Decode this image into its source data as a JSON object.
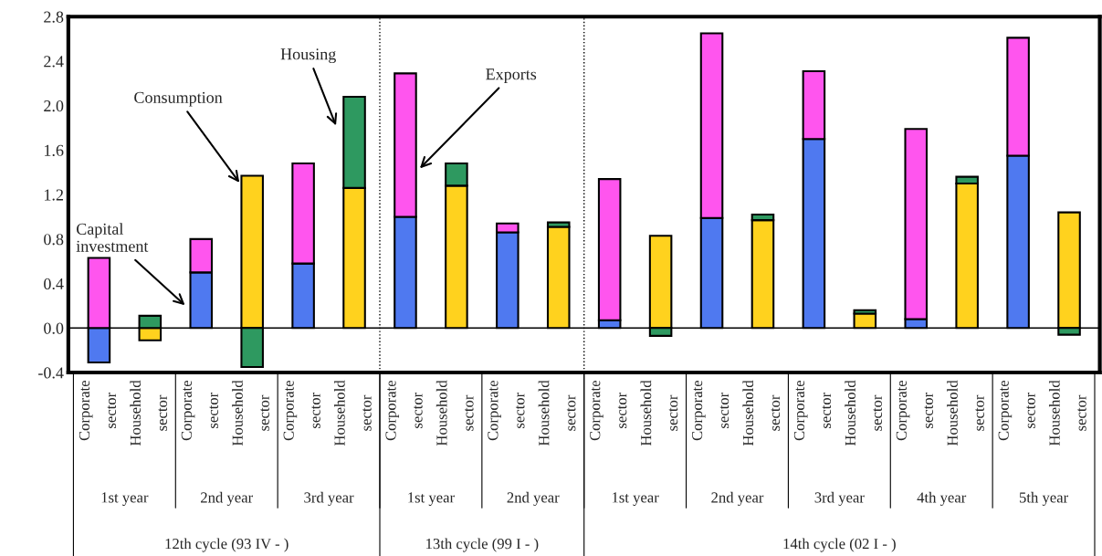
{
  "chart_data": {
    "type": "bar",
    "stacked": true,
    "categories": [
      "Corporate sector",
      "Household sector",
      "Corporate sector",
      "Household sector",
      "Corporate sector",
      "Household sector",
      "Corporate sector",
      "Household sector",
      "Corporate sector",
      "Household sector",
      "Corporate sector",
      "Household sector",
      "Corporate sector",
      "Household sector",
      "Corporate sector",
      "Household sector",
      "Corporate sector",
      "Household sector",
      "Corporate sector",
      "Household sector"
    ],
    "series": [
      {
        "name": "Capital investment",
        "color": "#4f79f0",
        "values": [
          -0.31,
          null,
          0.5,
          null,
          0.58,
          null,
          1.0,
          null,
          0.86,
          null,
          0.07,
          null,
          0.99,
          null,
          1.7,
          null,
          0.08,
          null,
          1.55,
          null
        ]
      },
      {
        "name": "Consumption",
        "color": "#ffd21e",
        "values": [
          null,
          -0.11,
          null,
          1.37,
          null,
          1.26,
          null,
          1.28,
          null,
          0.91,
          null,
          0.83,
          null,
          0.97,
          null,
          0.13,
          null,
          1.3,
          null,
          1.04
        ]
      },
      {
        "name": "Exports",
        "color": "#ff55ee",
        "values": [
          0.63,
          null,
          0.3,
          null,
          0.9,
          null,
          1.29,
          null,
          0.08,
          null,
          1.27,
          null,
          1.66,
          null,
          0.61,
          null,
          1.71,
          null,
          1.06,
          null
        ]
      },
      {
        "name": "Housing",
        "color": "#2e9960",
        "values": [
          null,
          0.11,
          null,
          -0.35,
          null,
          0.82,
          null,
          0.2,
          null,
          0.04,
          null,
          -0.07,
          null,
          0.05,
          null,
          0.03,
          null,
          0.06,
          null,
          -0.06
        ]
      }
    ],
    "ylim": [
      -0.4,
      2.8
    ],
    "yticks": [
      {
        "value": -0.4,
        "label": "-0.4"
      },
      {
        "value": 0,
        "label": "0.0"
      },
      {
        "value": 0.4,
        "label": "0.4"
      },
      {
        "value": 0.8,
        "label": "0.8"
      },
      {
        "value": 1.2,
        "label": "1.2"
      },
      {
        "value": 1.6,
        "label": "1.6"
      },
      {
        "value": 2.0,
        "label": "2.0"
      },
      {
        "value": 2.4,
        "label": "2.4"
      },
      {
        "value": 2.8,
        "label": "2.8"
      }
    ],
    "grid": false,
    "legend": false,
    "annotations": [
      "1st year",
      "2nd year",
      "3rd year",
      "1st year",
      "2nd year",
      "1st year",
      "2nd year",
      "3rd year",
      "4th year",
      "5th year",
      "12th cycle (93 IV - )",
      "13th cycle (99 I - )",
      "14th cycle (02 I - )"
    ]
  }
}
